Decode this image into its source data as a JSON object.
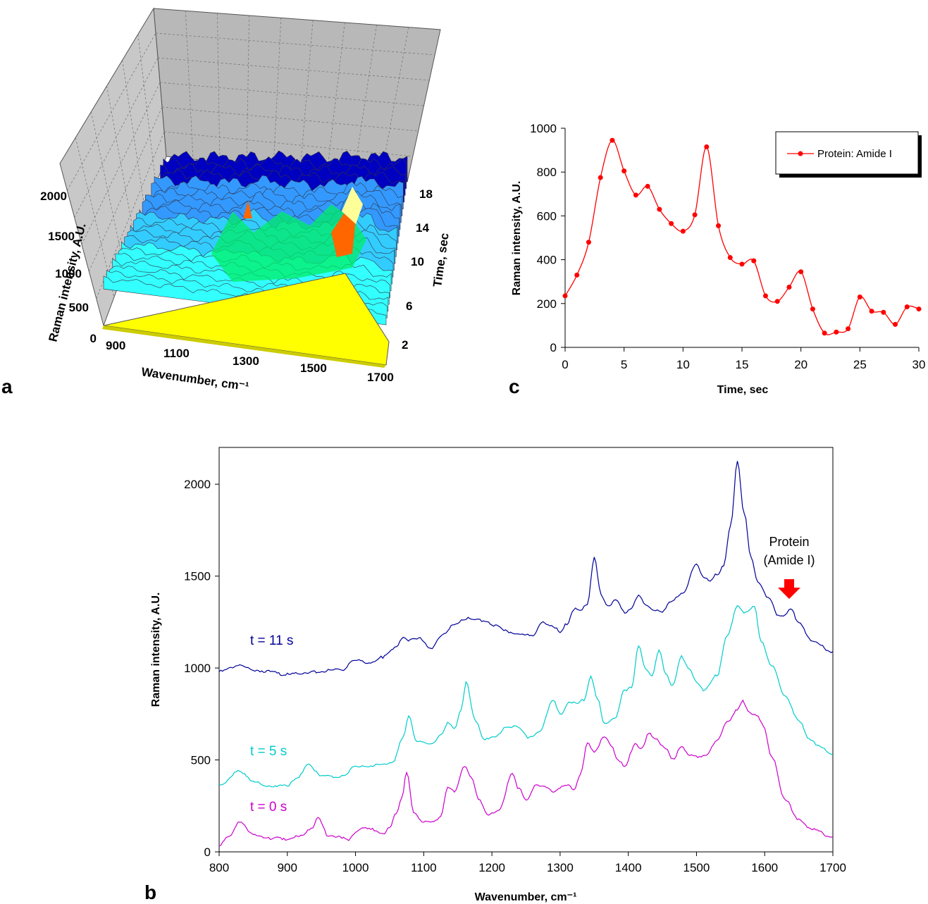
{
  "panel_letters": {
    "a": "a",
    "b": "b",
    "c": "c"
  },
  "chart_data": [
    {
      "panel": "a",
      "type": "area",
      "xlabel": "Wavenumber, cm⁻¹",
      "ylabel": "Raman intensity, A.U.",
      "zlabel": "Time, sec",
      "x_ticks": [
        "900",
        "1100",
        "1300",
        "1500",
        "1700"
      ],
      "y_ticks": [
        "0",
        "500",
        "1000",
        "1500",
        "2000"
      ],
      "z_ticks": [
        "2",
        "6",
        "10",
        "14",
        "18"
      ],
      "colors": {
        "floor": "#ffff00",
        "walls": "#c0c0c0",
        "deep": "#0000c0",
        "mid": "#3399ff",
        "light": "#33ccff",
        "cyan": "#33ffff",
        "green": "#00ee66",
        "peak_orange": "#ff6600",
        "peak_yellow": "#ffff99"
      }
    },
    {
      "panel": "b",
      "type": "line",
      "xlabel": "Wavenumber, cm⁻¹",
      "ylabel": "Raman intensity, A.U.",
      "xlim": [
        800,
        1700
      ],
      "ylim": [
        0,
        2200
      ],
      "x_ticks": [
        800,
        900,
        1000,
        1100,
        1200,
        1300,
        1400,
        1500,
        1600,
        1700
      ],
      "y_ticks": [
        0,
        500,
        1000,
        1500,
        2000
      ],
      "annotation": {
        "line1": "Protein",
        "line2": "(Amide I)",
        "x": 1638,
        "arrow_color": "#ff0000"
      },
      "series": [
        {
          "name": "t = 11 s",
          "color": "#000099",
          "points": [
            [
              800,
              980
            ],
            [
              830,
              1015
            ],
            [
              860,
              985
            ],
            [
              900,
              965
            ],
            [
              940,
              980
            ],
            [
              980,
              990
            ],
            [
              1000,
              1040
            ],
            [
              1020,
              1030
            ],
            [
              1040,
              1060
            ],
            [
              1060,
              1110
            ],
            [
              1070,
              1170
            ],
            [
              1080,
              1150
            ],
            [
              1095,
              1160
            ],
            [
              1110,
              1110
            ],
            [
              1130,
              1180
            ],
            [
              1145,
              1240
            ],
            [
              1160,
              1270
            ],
            [
              1175,
              1260
            ],
            [
              1190,
              1260
            ],
            [
              1205,
              1230
            ],
            [
              1220,
              1200
            ],
            [
              1240,
              1190
            ],
            [
              1260,
              1170
            ],
            [
              1275,
              1250
            ],
            [
              1290,
              1230
            ],
            [
              1300,
              1190
            ],
            [
              1310,
              1240
            ],
            [
              1320,
              1320
            ],
            [
              1330,
              1310
            ],
            [
              1340,
              1350
            ],
            [
              1350,
              1600
            ],
            [
              1360,
              1400
            ],
            [
              1370,
              1340
            ],
            [
              1382,
              1370
            ],
            [
              1395,
              1300
            ],
            [
              1405,
              1330
            ],
            [
              1415,
              1390
            ],
            [
              1425,
              1350
            ],
            [
              1440,
              1310
            ],
            [
              1450,
              1300
            ],
            [
              1460,
              1360
            ],
            [
              1480,
              1400
            ],
            [
              1500,
              1570
            ],
            [
              1510,
              1500
            ],
            [
              1520,
              1470
            ],
            [
              1530,
              1510
            ],
            [
              1540,
              1560
            ],
            [
              1550,
              1770
            ],
            [
              1560,
              2130
            ],
            [
              1570,
              1840
            ],
            [
              1580,
              1600
            ],
            [
              1590,
              1470
            ],
            [
              1605,
              1380
            ],
            [
              1620,
              1290
            ],
            [
              1630,
              1290
            ],
            [
              1638,
              1320
            ],
            [
              1650,
              1250
            ],
            [
              1670,
              1140
            ],
            [
              1700,
              1090
            ]
          ]
        },
        {
          "name": "t = 5 s",
          "color": "#00cccc",
          "points": [
            [
              800,
              365
            ],
            [
              830,
              440
            ],
            [
              850,
              380
            ],
            [
              870,
              360
            ],
            [
              900,
              360
            ],
            [
              915,
              400
            ],
            [
              930,
              480
            ],
            [
              950,
              410
            ],
            [
              980,
              410
            ],
            [
              1000,
              470
            ],
            [
              1020,
              460
            ],
            [
              1040,
              480
            ],
            [
              1055,
              490
            ],
            [
              1070,
              620
            ],
            [
              1078,
              740
            ],
            [
              1090,
              600
            ],
            [
              1110,
              580
            ],
            [
              1125,
              640
            ],
            [
              1135,
              700
            ],
            [
              1145,
              670
            ],
            [
              1155,
              780
            ],
            [
              1162,
              920
            ],
            [
              1175,
              720
            ],
            [
              1190,
              610
            ],
            [
              1205,
              620
            ],
            [
              1220,
              680
            ],
            [
              1235,
              680
            ],
            [
              1255,
              620
            ],
            [
              1270,
              660
            ],
            [
              1290,
              820
            ],
            [
              1300,
              750
            ],
            [
              1315,
              820
            ],
            [
              1325,
              800
            ],
            [
              1335,
              830
            ],
            [
              1345,
              950
            ],
            [
              1355,
              830
            ],
            [
              1365,
              700
            ],
            [
              1380,
              720
            ],
            [
              1395,
              880
            ],
            [
              1405,
              900
            ],
            [
              1415,
              1120
            ],
            [
              1425,
              1000
            ],
            [
              1435,
              960
            ],
            [
              1445,
              1090
            ],
            [
              1455,
              970
            ],
            [
              1465,
              900
            ],
            [
              1478,
              1060
            ],
            [
              1490,
              1000
            ],
            [
              1500,
              920
            ],
            [
              1510,
              880
            ],
            [
              1530,
              960
            ],
            [
              1545,
              1170
            ],
            [
              1560,
              1340
            ],
            [
              1572,
              1300
            ],
            [
              1585,
              1330
            ],
            [
              1595,
              1150
            ],
            [
              1610,
              1010
            ],
            [
              1630,
              850
            ],
            [
              1650,
              720
            ],
            [
              1665,
              610
            ],
            [
              1680,
              580
            ],
            [
              1700,
              525
            ]
          ]
        },
        {
          "name": "t = 0 s",
          "color": "#cc00cc",
          "points": [
            [
              800,
              40
            ],
            [
              815,
              80
            ],
            [
              830,
              170
            ],
            [
              850,
              90
            ],
            [
              870,
              70
            ],
            [
              885,
              85
            ],
            [
              900,
              60
            ],
            [
              920,
              90
            ],
            [
              935,
              130
            ],
            [
              945,
              180
            ],
            [
              960,
              90
            ],
            [
              980,
              80
            ],
            [
              990,
              60
            ],
            [
              1000,
              110
            ],
            [
              1010,
              130
            ],
            [
              1025,
              120
            ],
            [
              1040,
              100
            ],
            [
              1050,
              130
            ],
            [
              1060,
              210
            ],
            [
              1068,
              300
            ],
            [
              1075,
              430
            ],
            [
              1085,
              220
            ],
            [
              1100,
              160
            ],
            [
              1115,
              160
            ],
            [
              1125,
              200
            ],
            [
              1135,
              350
            ],
            [
              1145,
              330
            ],
            [
              1160,
              470
            ],
            [
              1170,
              400
            ],
            [
              1180,
              290
            ],
            [
              1195,
              200
            ],
            [
              1210,
              220
            ],
            [
              1230,
              430
            ],
            [
              1240,
              340
            ],
            [
              1250,
              280
            ],
            [
              1265,
              370
            ],
            [
              1275,
              350
            ],
            [
              1290,
              330
            ],
            [
              1300,
              350
            ],
            [
              1310,
              360
            ],
            [
              1320,
              340
            ],
            [
              1330,
              420
            ],
            [
              1340,
              590
            ],
            [
              1350,
              550
            ],
            [
              1365,
              620
            ],
            [
              1375,
              580
            ],
            [
              1385,
              500
            ],
            [
              1395,
              460
            ],
            [
              1410,
              590
            ],
            [
              1420,
              560
            ],
            [
              1430,
              640
            ],
            [
              1440,
              620
            ],
            [
              1455,
              560
            ],
            [
              1465,
              500
            ],
            [
              1478,
              580
            ],
            [
              1490,
              520
            ],
            [
              1502,
              520
            ],
            [
              1515,
              530
            ],
            [
              1530,
              600
            ],
            [
              1545,
              710
            ],
            [
              1560,
              770
            ],
            [
              1568,
              820
            ],
            [
              1578,
              760
            ],
            [
              1588,
              740
            ],
            [
              1598,
              690
            ],
            [
              1610,
              520
            ],
            [
              1630,
              280
            ],
            [
              1650,
              180
            ],
            [
              1670,
              120
            ],
            [
              1700,
              80
            ]
          ]
        }
      ]
    },
    {
      "panel": "c",
      "type": "line",
      "xlabel": "Time, sec",
      "ylabel": "Raman intensity, A.U.",
      "xlim": [
        0,
        30
      ],
      "ylim": [
        0,
        1000
      ],
      "x_ticks": [
        0,
        5,
        10,
        15,
        20,
        25,
        30
      ],
      "y_ticks": [
        0,
        200,
        400,
        600,
        800,
        1000
      ],
      "legend": {
        "position": "top-right"
      },
      "series": [
        {
          "name": "Protein: Amide I",
          "color": "#ff0000",
          "x": [
            0,
            1,
            2,
            3,
            4,
            5,
            6,
            7,
            8,
            9,
            10,
            11,
            12,
            13,
            14,
            15,
            16,
            17,
            18,
            19,
            20,
            21,
            22,
            23,
            24,
            25,
            26,
            27,
            28,
            29,
            30
          ],
          "y": [
            235,
            330,
            480,
            775,
            945,
            805,
            695,
            735,
            630,
            565,
            530,
            605,
            915,
            555,
            410,
            380,
            395,
            235,
            210,
            275,
            345,
            175,
            65,
            70,
            85,
            230,
            165,
            160,
            105,
            185,
            175
          ]
        }
      ]
    }
  ]
}
